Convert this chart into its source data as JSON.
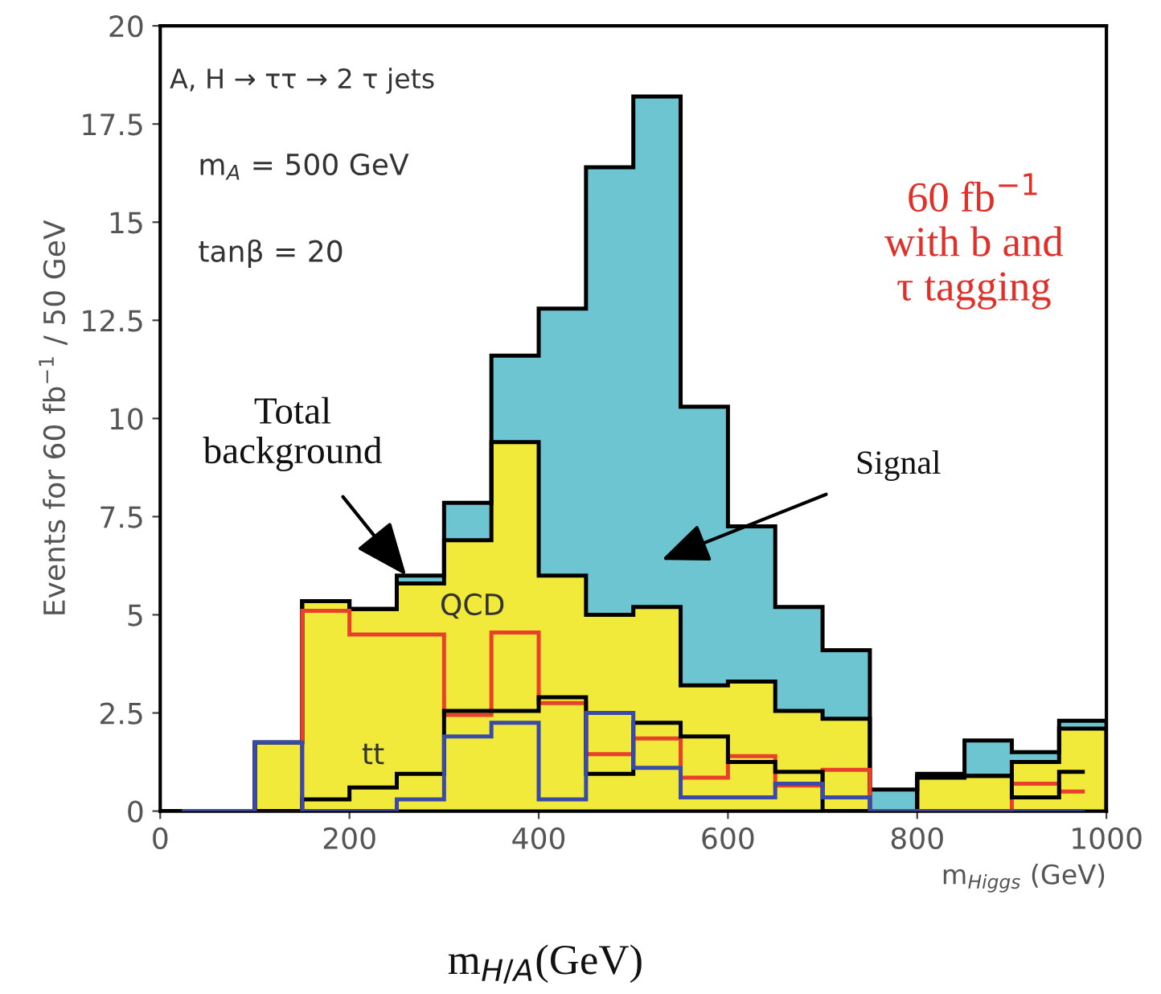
{
  "chart_data": {
    "type": "histogram",
    "xlabel": "m$_{Higgs}$ (GeV)",
    "ylabel": "Events for 60 fb$^{−1}$ / 50 GeV",
    "bins": [
      0,
      50,
      100,
      150,
      200,
      250,
      300,
      350,
      400,
      450,
      500,
      550,
      600,
      650,
      700,
      750,
      800,
      850,
      900,
      950,
      1000
    ],
    "series": [
      {
        "type": "histogram",
        "color": "#6cc5d1",
        "values": [
          0,
          0,
          1.75,
          5.35,
          5.15,
          6.0,
          7.85,
          11.6,
          12.8,
          16.4,
          18.2,
          10.3,
          7.25,
          5.2,
          4.1,
          0.55,
          0.95,
          1.8,
          1.5,
          2.3
        ]
      },
      {
        "type": "histogram",
        "color": "#f2ea3a",
        "values": [
          0,
          0,
          1.75,
          5.35,
          5.15,
          5.8,
          6.9,
          9.4,
          6.0,
          5.0,
          5.2,
          3.2,
          3.3,
          2.55,
          2.35,
          0,
          0.85,
          0.9,
          1.25,
          2.1
        ]
      },
      {
        "type": "step",
        "color": "#e8402a",
        "x": [
          25,
          75,
          125,
          175,
          225,
          275,
          325,
          375,
          425,
          475,
          525,
          575,
          625,
          675,
          725,
          775,
          825,
          875,
          925,
          975
        ],
        "values": [
          0,
          0,
          0,
          5.1,
          4.5,
          4.5,
          2.45,
          4.55,
          2.75,
          1.45,
          1.85,
          0.85,
          1.4,
          0.65,
          1.05,
          0,
          0,
          0,
          0.7,
          0.5
        ]
      },
      {
        "type": "step",
        "color": "#000000",
        "x": [
          25,
          75,
          125,
          175,
          225,
          275,
          325,
          375,
          425,
          475,
          525,
          575,
          625,
          675,
          725,
          775,
          825,
          875,
          925,
          975
        ],
        "values": [
          0,
          0,
          0,
          0.3,
          0.6,
          0.95,
          2.55,
          2.55,
          2.9,
          0.95,
          2.25,
          1.9,
          1.25,
          1.0,
          0,
          0,
          0.9,
          0.9,
          0.35,
          1.0
        ]
      },
      {
        "type": "step",
        "color": "#3a4aa8",
        "x": [
          25,
          75,
          125,
          175,
          225,
          275,
          325,
          375,
          425,
          475,
          525,
          575,
          625,
          675,
          725,
          775,
          825,
          875,
          925,
          975
        ],
        "values": [
          0,
          0,
          1.75,
          0,
          0,
          0.3,
          1.9,
          2.25,
          0.3,
          2.5,
          1.1,
          0.35,
          0.35,
          0.7,
          0.35,
          0,
          0,
          0,
          0,
          0
        ]
      }
    ],
    "xlim": [
      0,
      1000
    ],
    "ylim": [
      0,
      20
    ],
    "xticks": [
      0,
      200,
      400,
      600,
      800,
      1000
    ],
    "yticks": [
      0,
      2.5,
      5,
      7.5,
      10,
      12.5,
      15,
      17.5,
      20
    ],
    "annotations": [
      "A, H → ττ → 2 τ jets",
      "m$_{A}$ = 500 GeV",
      "tanβ = 20",
      "60 fb$^{−1}$\nwith b and\nτ tagging",
      {
        "text": "Total\nbackground",
        "x": 260,
        "y": 6.0
      },
      "Signal",
      "QCD",
      "tt",
      "m$_{H/A}$(GeV)"
    ],
    "grid": false,
    "legend": false
  }
}
